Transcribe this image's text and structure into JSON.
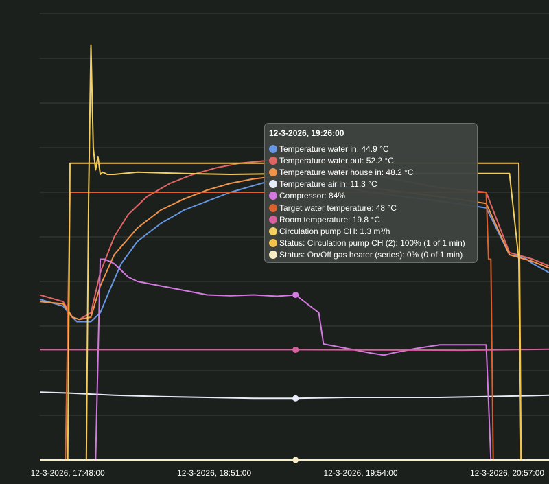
{
  "chart_data": {
    "type": "line",
    "title": "",
    "xlabel": "",
    "ylabel": "",
    "x_ticks": [
      "12-3-2026, 17:48:00",
      "12-3-2026, 18:51:00",
      "12-3-2026, 19:54:00",
      "12-3-2026, 20:57:00"
    ],
    "x_tick_minutes": [
      0,
      63,
      126,
      189
    ],
    "x_range_minutes": [
      -12,
      207
    ],
    "ylim": [
      0,
      1
    ],
    "gridlines": 11,
    "grid": true,
    "hover_minute": 98,
    "series": [
      {
        "name": "Temperature water in",
        "color": "#6796e2",
        "points": [
          [
            -12,
            0.36
          ],
          [
            -2,
            0.345
          ],
          [
            2,
            0.32
          ],
          [
            4,
            0.31
          ],
          [
            7,
            0.31
          ],
          [
            10,
            0.31
          ],
          [
            14,
            0.33
          ],
          [
            18,
            0.38
          ],
          [
            23,
            0.44
          ],
          [
            30,
            0.49
          ],
          [
            40,
            0.53
          ],
          [
            50,
            0.56
          ],
          [
            60,
            0.58
          ],
          [
            70,
            0.6
          ],
          [
            80,
            0.615
          ],
          [
            90,
            0.63
          ],
          [
            98,
            0.63
          ],
          [
            110,
            0.62
          ],
          [
            130,
            0.6
          ],
          [
            160,
            0.58
          ],
          [
            180,
            0.565
          ],
          [
            190,
            0.46
          ],
          [
            196,
            0.455
          ],
          [
            200,
            0.44
          ],
          [
            207,
            0.42
          ]
        ]
      },
      {
        "name": "Temperature water out",
        "color": "#e06666",
        "points": [
          [
            -12,
            0.37
          ],
          [
            -2,
            0.355
          ],
          [
            2,
            0.32
          ],
          [
            5,
            0.315
          ],
          [
            10,
            0.33
          ],
          [
            14,
            0.42
          ],
          [
            20,
            0.5
          ],
          [
            26,
            0.55
          ],
          [
            34,
            0.59
          ],
          [
            44,
            0.62
          ],
          [
            54,
            0.64
          ],
          [
            64,
            0.655
          ],
          [
            74,
            0.665
          ],
          [
            84,
            0.67
          ],
          [
            98,
            0.68
          ],
          [
            110,
            0.67
          ],
          [
            130,
            0.64
          ],
          [
            160,
            0.61
          ],
          [
            180,
            0.6
          ],
          [
            190,
            0.465
          ],
          [
            200,
            0.45
          ],
          [
            207,
            0.435
          ]
        ]
      },
      {
        "name": "Temperature water house in",
        "color": "#f2954a",
        "points": [
          [
            -12,
            0.355
          ],
          [
            -2,
            0.35
          ],
          [
            2,
            0.32
          ],
          [
            5,
            0.315
          ],
          [
            10,
            0.32
          ],
          [
            14,
            0.39
          ],
          [
            20,
            0.46
          ],
          [
            30,
            0.52
          ],
          [
            40,
            0.56
          ],
          [
            50,
            0.585
          ],
          [
            60,
            0.605
          ],
          [
            70,
            0.62
          ],
          [
            80,
            0.63
          ],
          [
            90,
            0.6355
          ],
          [
            98,
            0.6355
          ],
          [
            110,
            0.63
          ],
          [
            130,
            0.61
          ],
          [
            160,
            0.59
          ],
          [
            180,
            0.575
          ],
          [
            190,
            0.46
          ],
          [
            200,
            0.445
          ],
          [
            207,
            0.43
          ]
        ]
      },
      {
        "name": "Temperature air in",
        "color": "#e6ecf8",
        "points": [
          [
            -12,
            0.152
          ],
          [
            0,
            0.15
          ],
          [
            20,
            0.145
          ],
          [
            40,
            0.142
          ],
          [
            60,
            0.14
          ],
          [
            80,
            0.138
          ],
          [
            98,
            0.138
          ],
          [
            120,
            0.14
          ],
          [
            140,
            0.14
          ],
          [
            160,
            0.14
          ],
          [
            180,
            0.142
          ],
          [
            200,
            0.144
          ],
          [
            207,
            0.145
          ]
        ]
      },
      {
        "name": "Compressor",
        "color": "#d37ae0",
        "points": [
          [
            -12,
            0
          ],
          [
            12,
            0
          ],
          [
            14,
            0.45
          ],
          [
            15,
            0.45
          ],
          [
            16,
            0.45
          ],
          [
            18,
            0.445
          ],
          [
            20,
            0.44
          ],
          [
            26,
            0.41
          ],
          [
            30,
            0.4
          ],
          [
            40,
            0.39
          ],
          [
            50,
            0.38
          ],
          [
            60,
            0.37
          ],
          [
            70,
            0.368
          ],
          [
            80,
            0.37
          ],
          [
            90,
            0.367
          ],
          [
            98,
            0.37
          ],
          [
            108,
            0.33
          ],
          [
            110,
            0.26
          ],
          [
            120,
            0.25
          ],
          [
            130,
            0.24
          ],
          [
            136,
            0.235
          ],
          [
            140,
            0.24
          ],
          [
            150,
            0.25
          ],
          [
            160,
            0.258
          ],
          [
            170,
            0.258
          ],
          [
            180,
            0.258
          ],
          [
            182,
            0
          ],
          [
            207,
            0
          ]
        ]
      },
      {
        "name": "Target water temperature",
        "color": "#d9622e",
        "points": [
          [
            -12,
            0
          ],
          [
            -1,
            0
          ],
          [
            1,
            0.6
          ],
          [
            180,
            0.6
          ],
          [
            181,
            0.45
          ],
          [
            182,
            0.45
          ],
          [
            183,
            0
          ],
          [
            207,
            0
          ]
        ]
      },
      {
        "name": "Room temperature",
        "color": "#d8609c",
        "points": [
          [
            -12,
            0.247
          ],
          [
            40,
            0.247
          ],
          [
            98,
            0.247
          ],
          [
            170,
            0.246
          ],
          [
            190,
            0.247
          ],
          [
            207,
            0.248
          ]
        ]
      },
      {
        "name": "Circulation pump CH",
        "color": "#f4ce5e",
        "points": [
          [
            -12,
            0
          ],
          [
            8,
            0
          ],
          [
            9,
            0.6
          ],
          [
            10,
            0.93
          ],
          [
            11,
            0.7
          ],
          [
            12,
            0.65
          ],
          [
            13,
            0.68
          ],
          [
            14,
            0.64
          ],
          [
            15,
            0.645
          ],
          [
            17,
            0.64
          ],
          [
            20,
            0.64
          ],
          [
            30,
            0.645
          ],
          [
            50,
            0.642
          ],
          [
            70,
            0.64
          ],
          [
            98,
            0.642
          ],
          [
            150,
            0.642
          ],
          [
            190,
            0.642
          ],
          [
            194,
            0.45
          ],
          [
            195,
            0
          ],
          [
            207,
            0
          ]
        ]
      },
      {
        "name": "Status: Circulation pump CH (2)",
        "color": "#f3c44c",
        "points": [
          [
            -12,
            0
          ],
          [
            0,
            0
          ],
          [
            1,
            0.665
          ],
          [
            194,
            0.665
          ],
          [
            195,
            0
          ],
          [
            207,
            0
          ]
        ]
      },
      {
        "name": "Status: On/Off gas heater (series)",
        "color": "#f9edc6",
        "points": [
          [
            -12,
            0
          ],
          [
            207,
            0
          ]
        ]
      }
    ]
  },
  "tooltip": {
    "title": "12-3-2026, 19:26:00",
    "rows": [
      {
        "text": "Temperature water in: 44.9 °C",
        "color": "#6796e2"
      },
      {
        "text": "Temperature water out: 52.2 °C",
        "color": "#e06666"
      },
      {
        "text": "Temperature water house in: 48.2 °C",
        "color": "#f2954a"
      },
      {
        "text": "Temperature air in: 11.3 °C",
        "color": "#e6ecf8"
      },
      {
        "text": "Compressor: 84%",
        "color": "#d37ae0"
      },
      {
        "text": "Target water temperature: 48 °C",
        "color": "#d9622e"
      },
      {
        "text": "Room temperature: 19.8 °C",
        "color": "#d8609c"
      },
      {
        "text": "Circulation pump CH: 1.3 m³/h",
        "color": "#f4ce5e"
      },
      {
        "text": "Status: Circulation pump CH (2): 100% (1 of 1 min)",
        "color": "#f3c44c"
      },
      {
        "text": "Status: On/Off gas heater (series): 0% (0 of 1 min)",
        "color": "#f9edc6"
      }
    ]
  }
}
